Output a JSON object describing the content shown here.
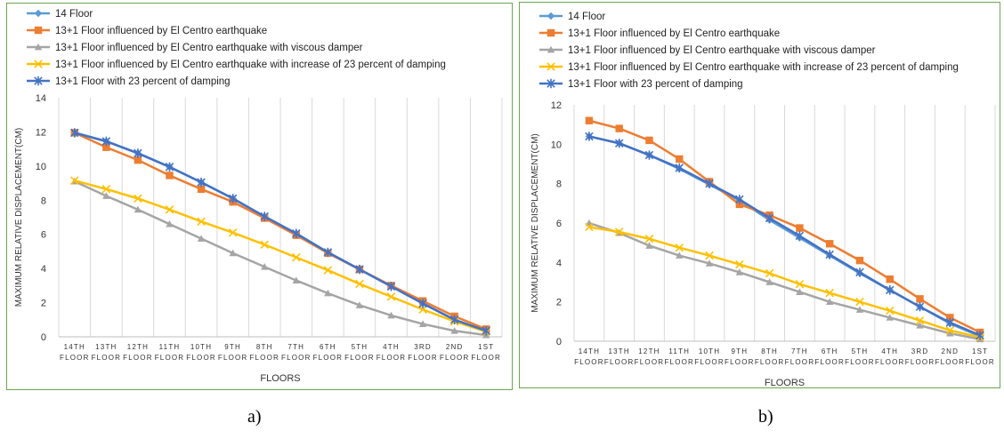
{
  "colors": {
    "14 Floor": "#5b9bd5",
    "13+1 Floor influenced by El Centro earthquake": "#ed7d31",
    "13+1 Floor influenced by El Centro earthquake with viscous damper": "#a5a5a5",
    "13+1 Floor influenced by El Centro earthquake with increase of 23 percent of damping": "#ffc000",
    "13+1 Floor with 23 percent of damping": "#4472c4",
    "grid": "#d9d9d9",
    "border": "#6aa84f"
  },
  "markers": {
    "14 Floor": "diamond",
    "13+1 Floor influenced by El Centro earthquake": "square",
    "13+1 Floor influenced by El Centro earthquake with viscous damper": "triangle",
    "13+1 Floor influenced by El Centro earthquake with increase of 23 percent of damping": "x",
    "13+1 Floor with 23 percent of damping": "star"
  },
  "captions": [
    "a)",
    "b)"
  ],
  "chart_data": [
    {
      "type": "line",
      "categories": [
        [
          "14TH",
          "FLOOR"
        ],
        [
          "13TH",
          "FLOOR"
        ],
        [
          "12TH",
          "FLOOR"
        ],
        [
          "11TH",
          "FLOOR"
        ],
        [
          "10TH",
          "FLOOR"
        ],
        [
          "9TH",
          "FLOOR"
        ],
        [
          "8TH",
          "FLOOR"
        ],
        [
          "7TH",
          "FLOOR"
        ],
        [
          "6TH",
          "FLOOR"
        ],
        [
          "5TH",
          "FLOOR"
        ],
        [
          "4TH",
          "FLOOR"
        ],
        [
          "3RD",
          "FLOOR"
        ],
        [
          "2ND",
          "FLOOR"
        ],
        [
          "1ST",
          "FLOOR"
        ]
      ],
      "xlabel": "FLOORS",
      "ylabel": "MAXIMUM RELATIVE DISPLACEMENT(CM)",
      "ylim": [
        0,
        14
      ],
      "yticks": [
        0,
        2,
        4,
        6,
        8,
        10,
        12,
        14
      ],
      "grid": "vertical",
      "legend_position": "top-left",
      "series": [
        {
          "name": "14 Floor",
          "values": [
            11.95,
            11.45,
            10.75,
            9.95,
            9.05,
            8.1,
            7.05,
            6.05,
            4.95,
            3.95,
            2.95,
            1.95,
            1.0,
            0.35
          ]
        },
        {
          "name": "13+1 Floor influenced by El Centro earthquake",
          "values": [
            11.95,
            11.1,
            10.35,
            9.45,
            8.65,
            7.9,
            6.95,
            5.95,
            4.9,
            3.95,
            3.0,
            2.1,
            1.2,
            0.45
          ]
        },
        {
          "name": "13+1 Floor influenced by El Centro earthquake with viscous damper",
          "values": [
            9.1,
            8.25,
            7.45,
            6.6,
            5.75,
            4.9,
            4.1,
            3.3,
            2.55,
            1.85,
            1.25,
            0.75,
            0.35,
            0.1
          ]
        },
        {
          "name": "13+1 Floor influenced by El Centro earthquake with increase of 23 percent of damping",
          "values": [
            9.15,
            8.65,
            8.1,
            7.45,
            6.75,
            6.1,
            5.4,
            4.65,
            3.9,
            3.1,
            2.35,
            1.6,
            0.9,
            0.3
          ]
        },
        {
          "name": "13+1 Floor with 23 percent of damping",
          "values": [
            11.95,
            11.45,
            10.75,
            9.95,
            9.05,
            8.1,
            7.05,
            6.05,
            4.95,
            3.95,
            2.95,
            1.95,
            1.0,
            0.35
          ]
        }
      ]
    },
    {
      "type": "line",
      "categories": [
        [
          "14TH",
          "FLOOR"
        ],
        [
          "13TH",
          "FLOOR"
        ],
        [
          "12TH",
          "FLOOR"
        ],
        [
          "11TH",
          "FLOOR"
        ],
        [
          "10TH",
          "FLOOR"
        ],
        [
          "9TH",
          "FLOOR"
        ],
        [
          "8TH",
          "FLOOR"
        ],
        [
          "7TH",
          "FLOOR"
        ],
        [
          "6TH",
          "FLOOR"
        ],
        [
          "5TH",
          "FLOOR"
        ],
        [
          "4TH",
          "FLOOR"
        ],
        [
          "3RD",
          "FLOOR"
        ],
        [
          "2ND",
          "FLOOR"
        ],
        [
          "1ST",
          "FLOOR"
        ]
      ],
      "xlabel": "FLOORS",
      "ylabel": "MAXIMUM RELATIVE DISPLACEMENT(CM)",
      "ylim": [
        0,
        12
      ],
      "yticks": [
        0,
        2,
        4,
        6,
        8,
        10,
        12
      ],
      "grid": "vertical",
      "legend_position": "top-left",
      "series": [
        {
          "name": "14 Floor",
          "values": [
            10.4,
            10.05,
            9.45,
            8.75,
            7.95,
            7.15,
            6.15,
            5.25,
            4.35,
            3.45,
            2.6,
            1.75,
            0.9,
            0.25
          ]
        },
        {
          "name": "13+1 Floor influenced by El Centro earthquake",
          "values": [
            11.2,
            10.8,
            10.2,
            9.25,
            8.1,
            6.95,
            6.4,
            5.75,
            4.95,
            4.1,
            3.15,
            2.15,
            1.2,
            0.45
          ]
        },
        {
          "name": "13+1 Floor influenced by El Centro earthquake with viscous damper",
          "values": [
            6.0,
            5.5,
            4.85,
            4.35,
            3.95,
            3.5,
            3.0,
            2.5,
            2.0,
            1.6,
            1.2,
            0.8,
            0.4,
            0.1
          ]
        },
        {
          "name": "13+1 Floor influenced by El Centro earthquake with increase of 23 percent of damping",
          "values": [
            5.8,
            5.55,
            5.2,
            4.75,
            4.35,
            3.9,
            3.45,
            2.9,
            2.45,
            2.0,
            1.55,
            1.05,
            0.55,
            0.2
          ]
        },
        {
          "name": "13+1 Floor with 23 percent of damping",
          "values": [
            10.4,
            10.05,
            9.45,
            8.8,
            8.0,
            7.2,
            6.25,
            5.35,
            4.4,
            3.5,
            2.6,
            1.75,
            0.95,
            0.3
          ]
        }
      ]
    }
  ]
}
